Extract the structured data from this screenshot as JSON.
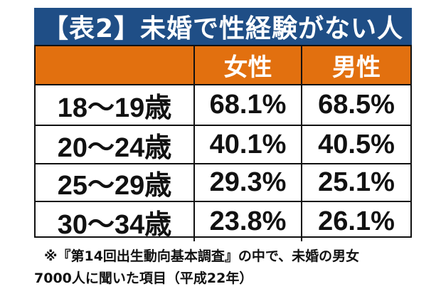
{
  "title": "【表2】未婚で性経験がない人",
  "table": {
    "headers": [
      "",
      "女性",
      "男性"
    ],
    "rows": [
      {
        "age": "18〜19歳",
        "female": "68.1%",
        "male": "68.5%"
      },
      {
        "age": "20〜24歳",
        "female": "40.1%",
        "male": "40.5%"
      },
      {
        "age": "25〜29歳",
        "female": "29.3%",
        "male": "25.1%"
      },
      {
        "age": "30〜34歳",
        "female": "23.8%",
        "male": "26.1%"
      }
    ]
  },
  "note": {
    "line1": "※『第14回出生動向基本調査』の中で、未婚の男女",
    "line2": "7000人に聞いた項目（平成22年）"
  },
  "colors": {
    "title_bg": "#1f4e86",
    "header_bg": "#e2700f",
    "text": "#111111"
  }
}
